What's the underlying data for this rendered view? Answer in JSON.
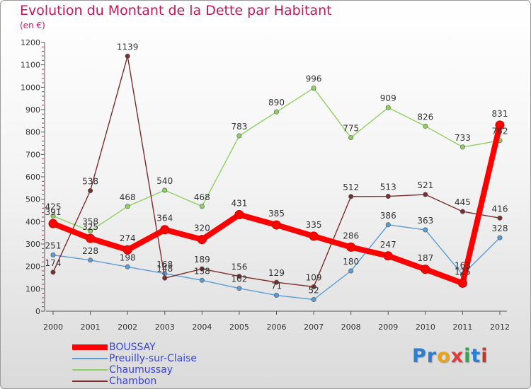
{
  "title": "Evolution du Montant de la Dette par Habitant",
  "subtitle": "(en €)",
  "logo": {
    "text": "Proxiti",
    "letters": [
      "P",
      "r",
      "o",
      "x",
      "i",
      "t",
      "i"
    ],
    "colors": [
      "#2a7fd4",
      "#2a7fd4",
      "#e8a317",
      "#e23b3b",
      "#2aa84a",
      "#2a7fd4",
      "#c0392b"
    ]
  },
  "chart_data": {
    "type": "line",
    "title": "Evolution du Montant de la Dette par Habitant",
    "subtitle": "(en €)",
    "xlabel": "",
    "ylabel": "",
    "x": [
      "2000",
      "2001",
      "2002",
      "2003",
      "2004",
      "2005",
      "2006",
      "2007",
      "2008",
      "2009",
      "2010",
      "2011",
      "2012"
    ],
    "ylim": [
      0,
      1200
    ],
    "yticks": [
      0,
      100,
      200,
      300,
      400,
      500,
      600,
      700,
      800,
      900,
      1000,
      1100,
      1200
    ],
    "grid": false,
    "legend_position": "bottom-left",
    "series": [
      {
        "name": "BOUSSAY",
        "color": "#ff0000",
        "values": [
          391,
          325,
          274,
          364,
          320,
          431,
          385,
          335,
          286,
          247,
          187,
          125,
          831
        ]
      },
      {
        "name": "Preuilly-sur-Claise",
        "color": "#5b9bd5",
        "values": [
          251,
          228,
          198,
          168,
          138,
          102,
          71,
          52,
          180,
          386,
          363,
          163,
          328
        ]
      },
      {
        "name": "Chaumussay",
        "color": "#90d060",
        "values": [
          425,
          358,
          468,
          540,
          468,
          783,
          890,
          996,
          775,
          909,
          826,
          733,
          762
        ]
      },
      {
        "name": "Chambon",
        "color": "#7b2d2d",
        "values": [
          174,
          538,
          1139,
          148,
          189,
          156,
          129,
          109,
          512,
          513,
          521,
          445,
          416
        ]
      }
    ]
  }
}
